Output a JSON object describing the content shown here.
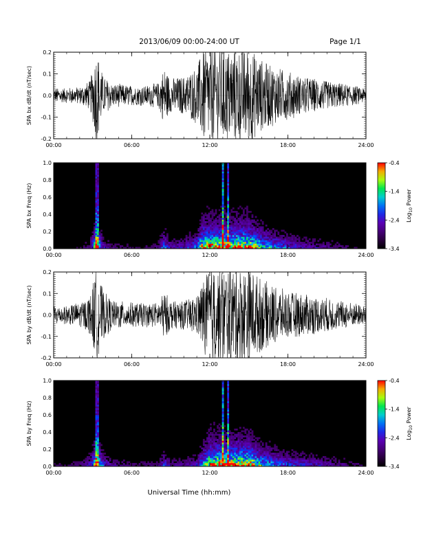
{
  "header": {
    "title": "2013/06/09  00:00-24:00 UT",
    "page": "Page 1/1"
  },
  "x_label": "Universal Time (hh:mm)",
  "chart_data": [
    {
      "type": "line",
      "ylabel": "SPA bx dB/dt (nT/sec)",
      "x_ticks": [
        "00:00",
        "06:00",
        "12:00",
        "18:00",
        "24:00"
      ],
      "xlim": [
        0,
        24
      ],
      "ylim": [
        -0.2,
        0.2
      ],
      "y_ticks": [
        "-0.2",
        "-0.1",
        "0.0",
        "0.1",
        "0.2"
      ],
      "y_tick_values": [
        -0.2,
        -0.1,
        0.0,
        0.1,
        0.2
      ],
      "activity_envelope": {
        "description_hours": [
          0,
          1,
          2,
          2.8,
          3.3,
          3.8,
          4.5,
          6,
          7,
          8,
          8.5,
          9,
          10,
          11,
          11.5,
          12,
          13,
          14,
          15,
          16,
          17,
          18,
          19,
          20,
          21,
          22,
          23,
          24
        ],
        "amplitude": [
          0.03,
          0.03,
          0.035,
          0.06,
          0.2,
          0.08,
          0.05,
          0.04,
          0.04,
          0.05,
          0.12,
          0.07,
          0.08,
          0.12,
          0.2,
          0.2,
          0.2,
          0.2,
          0.2,
          0.15,
          0.12,
          0.1,
          0.08,
          0.07,
          0.06,
          0.05,
          0.04,
          0.03
        ]
      },
      "series_color": "#000000"
    },
    {
      "type": "heatmap",
      "ylabel": "SPA bx Freq (Hz)",
      "x_ticks": [
        "00:00",
        "06:00",
        "12:00",
        "18:00",
        "24:00"
      ],
      "xlim": [
        0,
        24
      ],
      "ylim": [
        0.0,
        1.0
      ],
      "y_ticks": [
        "0.0",
        "0.2",
        "0.4",
        "0.6",
        "0.8",
        "1.0"
      ],
      "y_tick_values": [
        0,
        0.2,
        0.4,
        0.6,
        0.8,
        1.0
      ],
      "colorbar": {
        "label": "Log10 Power",
        "label_main": "Log",
        "label_sub": "10",
        "label_rest": " Power",
        "range": [
          -3.4,
          -0.4
        ],
        "ticks": [
          "-0.4",
          "-1.4",
          "-2.4",
          "-3.4"
        ],
        "tick_values": [
          -0.4,
          -1.4,
          -2.4,
          -3.4
        ]
      }
    },
    {
      "type": "line",
      "ylabel": "SPA by dB/dt (nT/sec)",
      "x_ticks": [
        "00:00",
        "06:00",
        "12:00",
        "18:00",
        "24:00"
      ],
      "xlim": [
        0,
        24
      ],
      "ylim": [
        -0.2,
        0.2
      ],
      "y_ticks": [
        "-0.2",
        "-0.1",
        "0.0",
        "0.1",
        "0.2"
      ],
      "y_tick_values": [
        -0.2,
        -0.1,
        0.0,
        0.1,
        0.2
      ],
      "activity_envelope": {
        "description_hours": [
          0,
          1,
          2,
          2.8,
          3.3,
          3.8,
          4.5,
          6,
          7,
          8,
          8.5,
          9,
          10,
          11,
          11.5,
          12,
          13,
          14,
          15,
          16,
          17,
          18,
          19,
          20,
          21,
          22,
          23,
          24
        ],
        "amplitude": [
          0.04,
          0.04,
          0.05,
          0.08,
          0.2,
          0.1,
          0.06,
          0.05,
          0.05,
          0.05,
          0.1,
          0.06,
          0.06,
          0.08,
          0.15,
          0.2,
          0.2,
          0.2,
          0.2,
          0.15,
          0.12,
          0.1,
          0.09,
          0.08,
          0.07,
          0.06,
          0.05,
          0.04
        ]
      },
      "series_color": "#000000"
    },
    {
      "type": "heatmap",
      "ylabel": "SPA by Freq (Hz)",
      "x_ticks": [
        "00:00",
        "06:00",
        "12:00",
        "18:00",
        "24:00"
      ],
      "xlim": [
        0,
        24
      ],
      "ylim": [
        0.0,
        1.0
      ],
      "y_ticks": [
        "0.0",
        "0.2",
        "0.4",
        "0.6",
        "0.8",
        "1.0"
      ],
      "y_tick_values": [
        0,
        0.2,
        0.4,
        0.6,
        0.8,
        1.0
      ],
      "colorbar": {
        "label": "Log10 Power",
        "label_main": "Log",
        "label_sub": "10",
        "label_rest": " Power",
        "range": [
          -3.4,
          -0.4
        ],
        "ticks": [
          "-0.4",
          "-1.4",
          "-2.4",
          "-3.4"
        ],
        "tick_values": [
          -0.4,
          -1.4,
          -2.4,
          -3.4
        ]
      }
    }
  ]
}
